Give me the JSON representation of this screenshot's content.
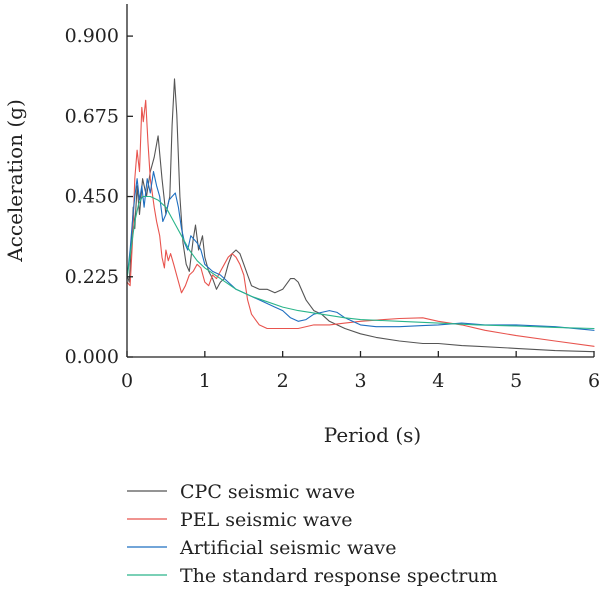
{
  "chart_data": {
    "type": "line",
    "xlabel": "Period (s)",
    "ylabel": "Acceleration (g)",
    "xlim": [
      0,
      6
    ],
    "ylim": [
      0,
      0.99
    ],
    "xticks": [
      "0",
      "1",
      "2",
      "3",
      "4",
      "5",
      "6"
    ],
    "yticks": [
      "0.000",
      "0.225",
      "0.450",
      "0.675",
      "0.900"
    ],
    "grid": false,
    "legend_position": "bottom",
    "series": [
      {
        "name": "CPC seismic wave",
        "color": "#555555",
        "points": [
          [
            0,
            0.23
          ],
          [
            0.03,
            0.21
          ],
          [
            0.06,
            0.33
          ],
          [
            0.08,
            0.42
          ],
          [
            0.1,
            0.36
          ],
          [
            0.13,
            0.48
          ],
          [
            0.16,
            0.4
          ],
          [
            0.2,
            0.5
          ],
          [
            0.25,
            0.45
          ],
          [
            0.3,
            0.52
          ],
          [
            0.35,
            0.56
          ],
          [
            0.4,
            0.62
          ],
          [
            0.45,
            0.5
          ],
          [
            0.5,
            0.4
          ],
          [
            0.55,
            0.45
          ],
          [
            0.58,
            0.65
          ],
          [
            0.61,
            0.78
          ],
          [
            0.64,
            0.68
          ],
          [
            0.68,
            0.45
          ],
          [
            0.72,
            0.32
          ],
          [
            0.76,
            0.26
          ],
          [
            0.8,
            0.24
          ],
          [
            0.85,
            0.33
          ],
          [
            0.88,
            0.37
          ],
          [
            0.92,
            0.3
          ],
          [
            0.97,
            0.34
          ],
          [
            1.0,
            0.28
          ],
          [
            1.05,
            0.24
          ],
          [
            1.1,
            0.22
          ],
          [
            1.15,
            0.19
          ],
          [
            1.2,
            0.21
          ],
          [
            1.25,
            0.22
          ],
          [
            1.3,
            0.26
          ],
          [
            1.35,
            0.29
          ],
          [
            1.4,
            0.3
          ],
          [
            1.45,
            0.29
          ],
          [
            1.5,
            0.26
          ],
          [
            1.55,
            0.23
          ],
          [
            1.6,
            0.2
          ],
          [
            1.7,
            0.19
          ],
          [
            1.8,
            0.19
          ],
          [
            1.9,
            0.18
          ],
          [
            2.0,
            0.19
          ],
          [
            2.1,
            0.22
          ],
          [
            2.15,
            0.22
          ],
          [
            2.2,
            0.21
          ],
          [
            2.3,
            0.16
          ],
          [
            2.4,
            0.13
          ],
          [
            2.5,
            0.12
          ],
          [
            2.6,
            0.1
          ],
          [
            2.8,
            0.08
          ],
          [
            3.0,
            0.065
          ],
          [
            3.2,
            0.055
          ],
          [
            3.5,
            0.045
          ],
          [
            3.8,
            0.038
          ],
          [
            4.0,
            0.038
          ],
          [
            4.3,
            0.032
          ],
          [
            4.5,
            0.03
          ],
          [
            5.0,
            0.024
          ],
          [
            5.5,
            0.018
          ],
          [
            6.0,
            0.015
          ]
        ]
      },
      {
        "name": "PEL seismic wave",
        "color": "#e8544e",
        "points": [
          [
            0,
            0.21
          ],
          [
            0.04,
            0.2
          ],
          [
            0.07,
            0.32
          ],
          [
            0.1,
            0.5
          ],
          [
            0.13,
            0.58
          ],
          [
            0.16,
            0.52
          ],
          [
            0.19,
            0.7
          ],
          [
            0.21,
            0.66
          ],
          [
            0.24,
            0.72
          ],
          [
            0.27,
            0.6
          ],
          [
            0.3,
            0.5
          ],
          [
            0.35,
            0.42
          ],
          [
            0.38,
            0.38
          ],
          [
            0.42,
            0.34
          ],
          [
            0.45,
            0.28
          ],
          [
            0.48,
            0.25
          ],
          [
            0.5,
            0.3
          ],
          [
            0.53,
            0.27
          ],
          [
            0.56,
            0.29
          ],
          [
            0.6,
            0.26
          ],
          [
            0.65,
            0.22
          ],
          [
            0.7,
            0.18
          ],
          [
            0.75,
            0.2
          ],
          [
            0.8,
            0.23
          ],
          [
            0.85,
            0.24
          ],
          [
            0.9,
            0.26
          ],
          [
            0.95,
            0.25
          ],
          [
            1.0,
            0.21
          ],
          [
            1.05,
            0.2
          ],
          [
            1.1,
            0.23
          ],
          [
            1.15,
            0.22
          ],
          [
            1.2,
            0.24
          ],
          [
            1.25,
            0.26
          ],
          [
            1.3,
            0.28
          ],
          [
            1.35,
            0.29
          ],
          [
            1.4,
            0.28
          ],
          [
            1.45,
            0.26
          ],
          [
            1.5,
            0.23
          ],
          [
            1.55,
            0.16
          ],
          [
            1.6,
            0.12
          ],
          [
            1.7,
            0.09
          ],
          [
            1.8,
            0.08
          ],
          [
            1.9,
            0.08
          ],
          [
            2.0,
            0.08
          ],
          [
            2.2,
            0.08
          ],
          [
            2.4,
            0.09
          ],
          [
            2.6,
            0.09
          ],
          [
            2.8,
            0.095
          ],
          [
            3.0,
            0.1
          ],
          [
            3.3,
            0.105
          ],
          [
            3.5,
            0.108
          ],
          [
            3.8,
            0.11
          ],
          [
            4.0,
            0.1
          ],
          [
            4.3,
            0.09
          ],
          [
            4.6,
            0.075
          ],
          [
            5.0,
            0.06
          ],
          [
            5.5,
            0.045
          ],
          [
            6.0,
            0.03
          ]
        ]
      },
      {
        "name": "Artificial seismic wave",
        "color": "#1f6fc0",
        "points": [
          [
            0,
            0.22
          ],
          [
            0.04,
            0.3
          ],
          [
            0.07,
            0.38
          ],
          [
            0.1,
            0.45
          ],
          [
            0.13,
            0.5
          ],
          [
            0.16,
            0.44
          ],
          [
            0.19,
            0.48
          ],
          [
            0.22,
            0.42
          ],
          [
            0.26,
            0.5
          ],
          [
            0.3,
            0.46
          ],
          [
            0.34,
            0.52
          ],
          [
            0.38,
            0.48
          ],
          [
            0.42,
            0.45
          ],
          [
            0.46,
            0.38
          ],
          [
            0.5,
            0.4
          ],
          [
            0.54,
            0.44
          ],
          [
            0.58,
            0.45
          ],
          [
            0.62,
            0.46
          ],
          [
            0.66,
            0.42
          ],
          [
            0.7,
            0.36
          ],
          [
            0.74,
            0.32
          ],
          [
            0.78,
            0.3
          ],
          [
            0.82,
            0.34
          ],
          [
            0.86,
            0.33
          ],
          [
            0.9,
            0.32
          ],
          [
            0.95,
            0.3
          ],
          [
            1.0,
            0.26
          ],
          [
            1.05,
            0.25
          ],
          [
            1.1,
            0.24
          ],
          [
            1.2,
            0.23
          ],
          [
            1.3,
            0.21
          ],
          [
            1.4,
            0.19
          ],
          [
            1.5,
            0.18
          ],
          [
            1.6,
            0.17
          ],
          [
            1.7,
            0.16
          ],
          [
            1.8,
            0.15
          ],
          [
            1.9,
            0.14
          ],
          [
            2.0,
            0.13
          ],
          [
            2.1,
            0.11
          ],
          [
            2.2,
            0.1
          ],
          [
            2.3,
            0.105
          ],
          [
            2.4,
            0.12
          ],
          [
            2.5,
            0.125
          ],
          [
            2.6,
            0.13
          ],
          [
            2.7,
            0.125
          ],
          [
            2.8,
            0.11
          ],
          [
            3.0,
            0.09
          ],
          [
            3.2,
            0.085
          ],
          [
            3.5,
            0.085
          ],
          [
            3.8,
            0.088
          ],
          [
            4.0,
            0.09
          ],
          [
            4.3,
            0.095
          ],
          [
            4.6,
            0.09
          ],
          [
            5.0,
            0.09
          ],
          [
            5.5,
            0.085
          ],
          [
            6.0,
            0.075
          ]
        ]
      },
      {
        "name": "The standard response spectrum",
        "color": "#2ab58a",
        "points": [
          [
            0,
            0.22
          ],
          [
            0.05,
            0.3
          ],
          [
            0.1,
            0.38
          ],
          [
            0.15,
            0.43
          ],
          [
            0.2,
            0.45
          ],
          [
            0.3,
            0.45
          ],
          [
            0.4,
            0.44
          ],
          [
            0.5,
            0.42
          ],
          [
            0.6,
            0.38
          ],
          [
            0.7,
            0.34
          ],
          [
            0.8,
            0.3
          ],
          [
            0.9,
            0.27
          ],
          [
            1.0,
            0.25
          ],
          [
            1.2,
            0.22
          ],
          [
            1.4,
            0.19
          ],
          [
            1.6,
            0.17
          ],
          [
            1.8,
            0.155
          ],
          [
            2.0,
            0.14
          ],
          [
            2.2,
            0.13
          ],
          [
            2.5,
            0.12
          ],
          [
            2.8,
            0.11
          ],
          [
            3.0,
            0.105
          ],
          [
            3.5,
            0.1
          ],
          [
            4.0,
            0.095
          ],
          [
            4.5,
            0.09
          ],
          [
            5.0,
            0.087
          ],
          [
            5.5,
            0.083
          ],
          [
            6.0,
            0.08
          ]
        ]
      }
    ]
  }
}
